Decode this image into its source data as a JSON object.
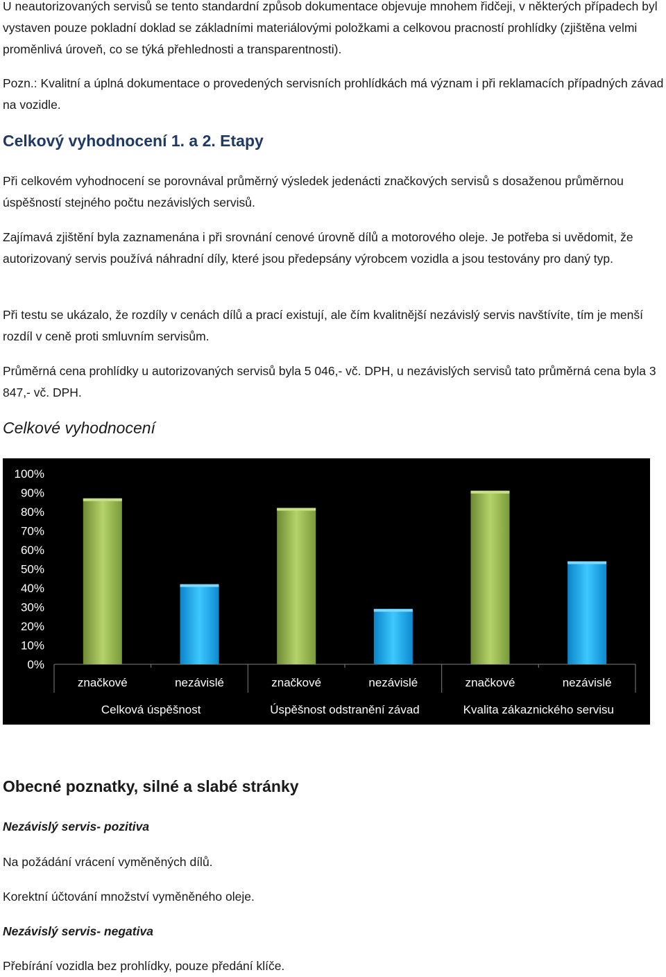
{
  "paragraphs": {
    "p1": "U neautorizovaných servisů se tento standardní způsob dokumentace objevuje mnohem řidčeji, v některých případech byl vystaven pouze pokladní doklad se základními materiálovými položkami a celkovou pracností prohlídky (zjištěna velmi proměnlivá úroveň, co se týká přehlednosti a transparentnosti).",
    "p2": "Pozn.: Kvalitní a úplná dokumentace o provedených servisních prohlídkách má význam i při reklamacích případných závad na vozidle.",
    "h_etapy": "Celkový vyhodnocení 1. a 2. Etapy",
    "p3": "Při celkovém vyhodnocení se porovnával průměrný výsledek jedenácti značkových servisů s dosaženou průměrnou úspěšností stejného počtu nezávislých servisů.",
    "p4": "Zajímavá zjištění byla zaznamenána i při srovnání cenové úrovně dílů a motorového oleje. Je potřeba si uvědomit, že autorizovaný servis používá náhradní díly, které jsou předepsány výrobcem vozidla a jsou testovány pro daný typ.",
    "p5": "Při testu se ukázalo, že rozdíly v cenách dílů a prací existují, ale čím kvalitnější nezávislý servis navštívíte, tím je menší rozdíl v ceně proti smluvním servisům.",
    "p6": "Průměrná cena prohlídky u autorizovaných servisů byla 5 046,- vč. DPH, u nezávislých servisů tato průměrná cena byla 3 847,- vč. DPH.",
    "h_celkove": "Celkové vyhodnocení",
    "h_obecne": "Obecné poznatky, silné a slabé stránky",
    "sub_pozitiva": "Nezávislý servis- pozitiva",
    "p7": "Na požádání vrácení vyměněných dílů.",
    "p8": "Korektní účtování množství vyměněného oleje.",
    "sub_negativa": "Nezávislý servis- negativa",
    "p9": "Přebírání vozidla bez prohlídky, pouze předání klíče."
  },
  "chart_data": {
    "type": "bar",
    "title": "",
    "ylabel": "",
    "ylim": [
      0,
      100
    ],
    "yticks": [
      "0%",
      "10%",
      "20%",
      "30%",
      "40%",
      "50%",
      "60%",
      "70%",
      "80%",
      "90%",
      "100%"
    ],
    "groups": [
      "Celková úspěšnost",
      "Úspěšnost odstranění závad",
      "Kvalita zákaznického servisu"
    ],
    "categories": [
      "značkové",
      "nezávislé",
      "značkové",
      "nezávislé",
      "značkové",
      "nezávislé"
    ],
    "values": [
      87,
      42,
      82,
      29,
      91,
      54
    ],
    "colors": {
      "značkové": "#9bbb59",
      "nezávislé": "#1ab0f5"
    },
    "grid": false,
    "background": "#000000"
  }
}
